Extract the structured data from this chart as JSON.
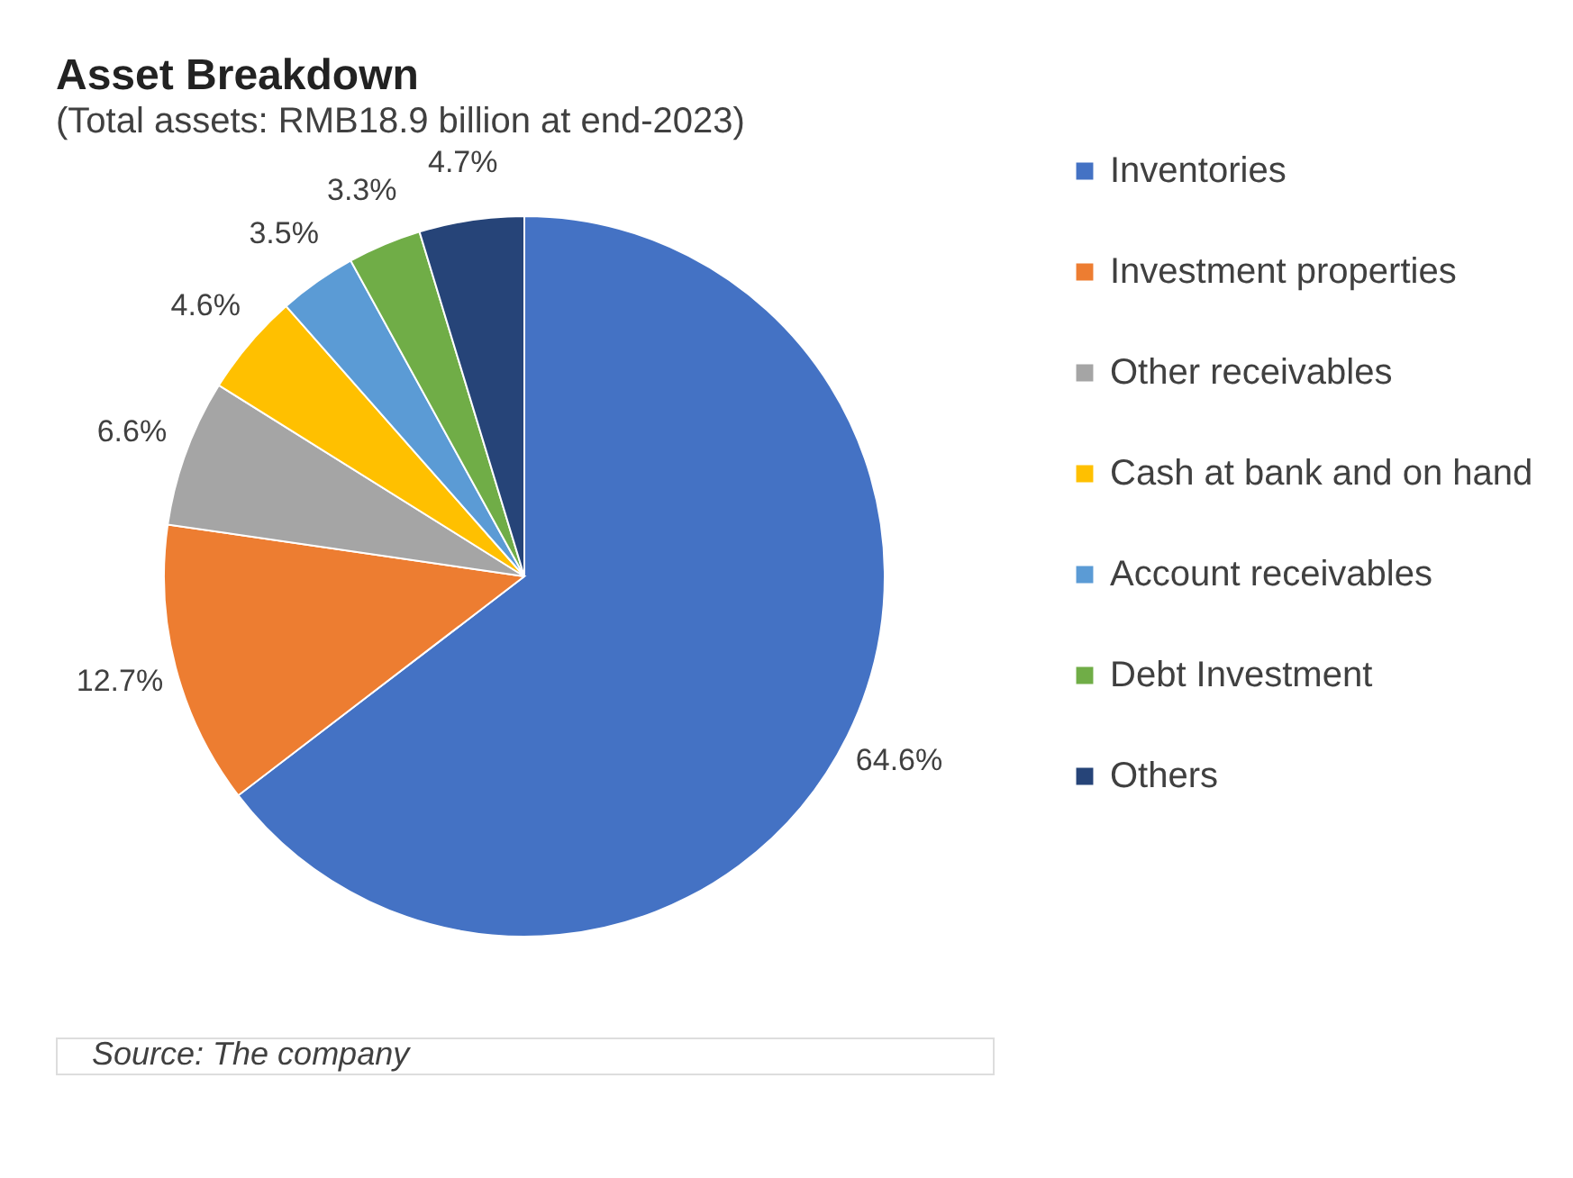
{
  "chart_data": {
    "type": "pie",
    "title": "Asset Breakdown",
    "subtitle": "(Total assets: RMB18.9 billion at end-2023)",
    "categories": [
      "Inventories",
      "Investment properties",
      "Other receivables",
      "Cash at bank and on hand",
      "Account receivables",
      "Debt Investment",
      "Others"
    ],
    "values": [
      64.6,
      12.7,
      6.6,
      4.6,
      3.5,
      3.3,
      4.7
    ],
    "colors": [
      "#4472c4",
      "#ed7d31",
      "#a5a5a5",
      "#ffc000",
      "#5b9bd5",
      "#70ad47",
      "#264478"
    ],
    "value_labels": [
      "64.6%",
      "12.7%",
      "6.6%",
      "4.6%",
      "3.5%",
      "3.3%",
      "4.7%"
    ],
    "legend": "right",
    "annotations": [
      "Source: The company"
    ]
  }
}
